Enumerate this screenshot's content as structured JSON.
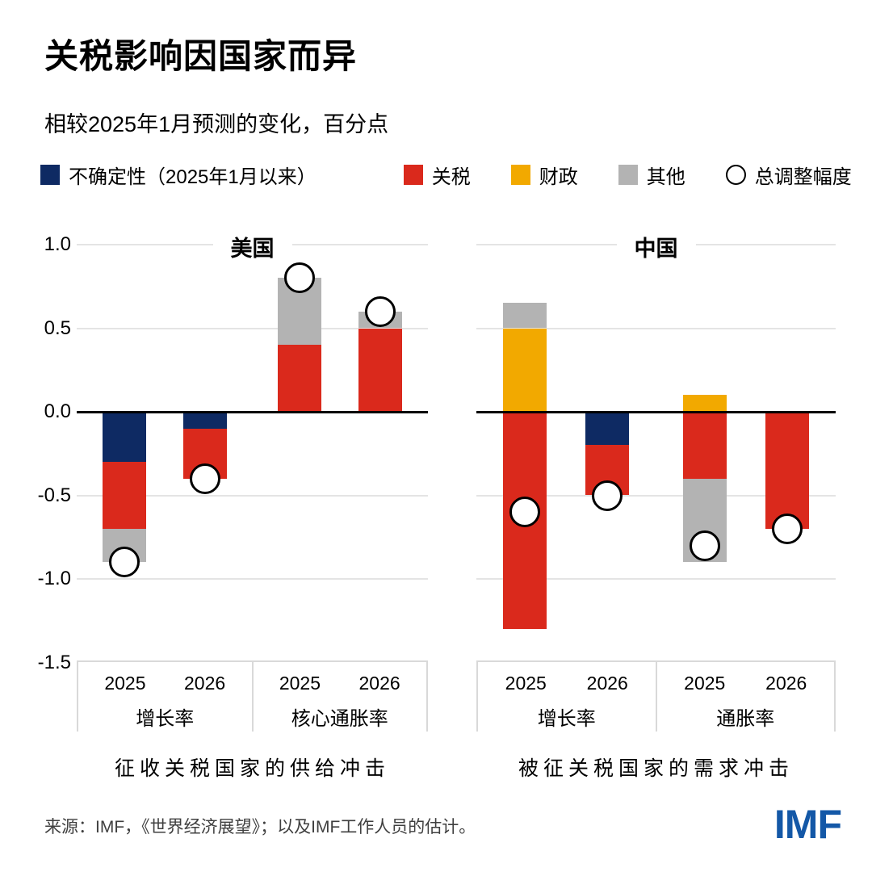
{
  "title": "关税影响因国家而异",
  "subtitle": "相较2025年1月预测的变化，百分点",
  "legend": {
    "items": [
      {
        "label": "不确定性（2025年1月以来）",
        "series": "不确定性",
        "marker": "square",
        "color": "#0e2a63"
      },
      {
        "label": "关税",
        "series": "关税",
        "marker": "square",
        "color": "#da291c"
      },
      {
        "label": "财政",
        "series": "财政",
        "marker": "square",
        "color": "#f2a900"
      },
      {
        "label": "其他",
        "series": "其他",
        "marker": "square",
        "color": "#b3b3b3"
      },
      {
        "label": "总调整幅度",
        "series": "总调整幅度",
        "marker": "circle",
        "color": "#ffffff"
      }
    ]
  },
  "chart_data": {
    "type": "bar",
    "stacked": true,
    "unit": "百分点",
    "ylim": [
      -1.5,
      1.0
    ],
    "yticks": [
      1.0,
      0.5,
      0.0,
      -0.5,
      -1.0,
      -1.5
    ],
    "grid_values": [
      1.0,
      0.5,
      -0.5,
      -1.0
    ],
    "series_colors": {
      "不确定性": "#0e2a63",
      "关税": "#da291c",
      "财政": "#f2a900",
      "其他": "#b3b3b3"
    },
    "panels": [
      {
        "title": "美国",
        "caption": "征收关税国家的供给冲击",
        "groups": [
          {
            "label": "增长率",
            "bars": [
              {
                "year": "2025",
                "segments": [
                  {
                    "series": "不确定性",
                    "value": -0.3
                  },
                  {
                    "series": "关税",
                    "value": -0.4
                  },
                  {
                    "series": "其他",
                    "value": -0.2
                  }
                ],
                "total": -0.9
              },
              {
                "year": "2026",
                "segments": [
                  {
                    "series": "不确定性",
                    "value": -0.1
                  },
                  {
                    "series": "关税",
                    "value": -0.3
                  }
                ],
                "total": -0.4
              }
            ]
          },
          {
            "label": "核心通胀率",
            "bars": [
              {
                "year": "2025",
                "segments": [
                  {
                    "series": "关税",
                    "value": 0.4
                  },
                  {
                    "series": "其他",
                    "value": 0.4
                  }
                ],
                "total": 0.8
              },
              {
                "year": "2026",
                "segments": [
                  {
                    "series": "关税",
                    "value": 0.5
                  },
                  {
                    "series": "其他",
                    "value": 0.1
                  }
                ],
                "total": 0.6
              }
            ]
          }
        ]
      },
      {
        "title": "中国",
        "caption": "被征关税国家的需求冲击",
        "groups": [
          {
            "label": "增长率",
            "bars": [
              {
                "year": "2025",
                "segments": [
                  {
                    "series": "财政",
                    "value": 0.5
                  },
                  {
                    "series": "其他",
                    "value": 0.15
                  },
                  {
                    "series": "关税",
                    "value": -1.3
                  }
                ],
                "total": -0.6
              },
              {
                "year": "2026",
                "segments": [
                  {
                    "series": "不确定性",
                    "value": -0.2
                  },
                  {
                    "series": "关税",
                    "value": -0.3
                  }
                ],
                "total": -0.5
              }
            ]
          },
          {
            "label": "通胀率",
            "bars": [
              {
                "year": "2025",
                "segments": [
                  {
                    "series": "财政",
                    "value": 0.1
                  },
                  {
                    "series": "关税",
                    "value": -0.4
                  },
                  {
                    "series": "其他",
                    "value": -0.5
                  }
                ],
                "total": -0.8
              },
              {
                "year": "2026",
                "segments": [
                  {
                    "series": "关税",
                    "value": -0.7
                  }
                ],
                "total": -0.7
              }
            ]
          }
        ]
      }
    ]
  },
  "footer": {
    "source": "来源：IMF，《世界经济展望》；以及IMF工作人员的估计。",
    "logo": "IMF"
  }
}
